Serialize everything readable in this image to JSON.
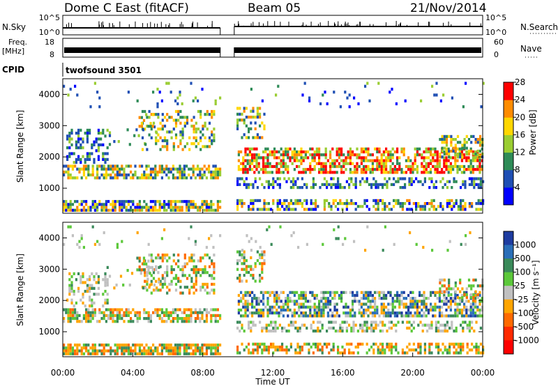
{
  "header": {
    "station": "Dome C East (fitACF)",
    "beam": "Beam 05",
    "date": "21/Nov/2014"
  },
  "strip_panels": {
    "nsky_label": "N.Sky",
    "nsky_ticks": [
      "10^5",
      "10^0"
    ],
    "nsearch_label": "N.Search",
    "nsearch_ticks": [
      "10^5",
      "10^0"
    ],
    "freq_label_line1": "Freq.",
    "freq_label_line2": "[MHz]",
    "freq_ticks": [
      "18",
      "8"
    ],
    "nave_label": "Nave",
    "nave_ticks": [
      "60",
      "0"
    ],
    "cpid_label": "CPID",
    "cpid_value": "twofsound 3501"
  },
  "chart_data": [
    {
      "type": "heatmap",
      "name": "power",
      "ylabel": "Slant Range [km]",
      "xlabel": "",
      "ylim": [
        200,
        4500
      ],
      "xlim_hours": [
        0,
        24
      ],
      "yticks": [
        1000,
        2000,
        3000,
        4000
      ],
      "ytick_labels": [
        "1000",
        "2000",
        "3000",
        "4000"
      ],
      "colorbar": {
        "label": "Power [dB]",
        "ticks": [
          "4",
          "8",
          "12",
          "16",
          "20",
          "24",
          "28"
        ],
        "colors": [
          "#0000ff",
          "#1f4fb4",
          "#2e8b57",
          "#9acd32",
          "#ffd700",
          "#ff8c00",
          "#ff0000"
        ]
      },
      "data_gap_hours": [
        9.0,
        9.8
      ]
    },
    {
      "type": "heatmap",
      "name": "velocity",
      "ylabel": "Slant Range [km]",
      "xlabel": "Time UT",
      "ylim": [
        200,
        4500
      ],
      "xlim_hours": [
        0,
        24
      ],
      "yticks": [
        1000,
        2000,
        3000,
        4000
      ],
      "ytick_labels": [
        "1000",
        "2000",
        "3000",
        "4000"
      ],
      "xticks": [
        "00:00",
        "04:00",
        "08:00",
        "12:00",
        "16:00",
        "20:00",
        "00:00"
      ],
      "colorbar": {
        "label": "Velocity [m s⁻¹]",
        "ticks": [
          "1000",
          "500",
          "100",
          "25",
          "-25",
          "-100",
          "-500",
          "-1000"
        ],
        "colors": [
          "#1e3ca0",
          "#2a6eb8",
          "#3a8a5a",
          "#5cc83a",
          "#c0c0c0",
          "#ffa500",
          "#ff6a00",
          "#ff2a00",
          "#ff0000"
        ]
      },
      "data_gap_hours": [
        9.0,
        9.8
      ],
      "ground_scatter_color": "#b4b4b4"
    }
  ]
}
